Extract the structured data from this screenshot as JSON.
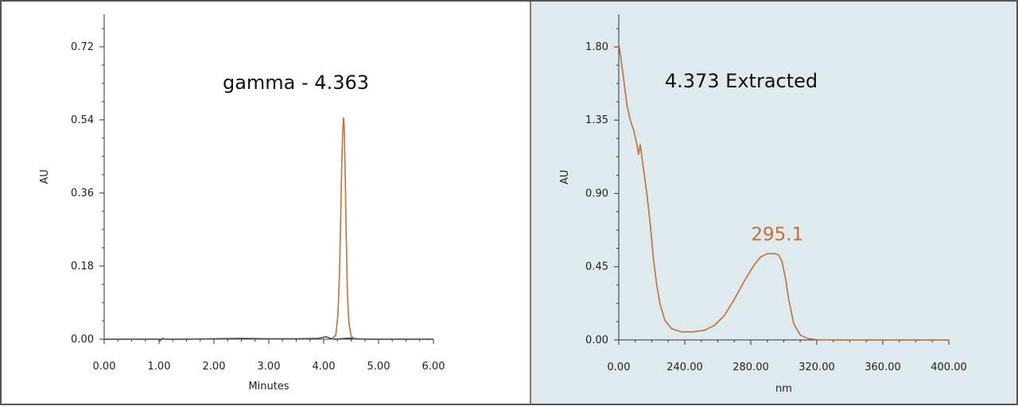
{
  "colors": {
    "accent": "#c0703a",
    "baseline": "#4a4a6a",
    "right_panel_bg": "#deeaee",
    "frame": "#555555",
    "axis": "#333333"
  },
  "chart_data": [
    {
      "type": "line",
      "title": "gamma - 4.363",
      "xlabel": "Minutes",
      "ylabel": "AU",
      "xlim": [
        0,
        6
      ],
      "ylim": [
        -0.01,
        0.8
      ],
      "xticks": [
        "0.00",
        "1.00",
        "2.00",
        "3.00",
        "4.00",
        "5.00",
        "6.00"
      ],
      "yticks": [
        "0.00",
        "0.18",
        "0.36",
        "0.54",
        "0.72"
      ],
      "series": [
        {
          "color": "#4a4a6a",
          "x": [
            0,
            0.5,
            0.98,
            1.02,
            1.06,
            1.12,
            1.5,
            2.0,
            2.5,
            3.0,
            3.5,
            3.9,
            4.05,
            4.12,
            4.2,
            4.5,
            4.6,
            4.8,
            5.0,
            5.5,
            6.0
          ],
          "y": [
            0,
            0,
            0,
            -0.004,
            0.002,
            0,
            0,
            0.001,
            0.002,
            0.001,
            0.001,
            0.002,
            0.006,
            0.002,
            0,
            0.003,
            0.001,
            0,
            0,
            0,
            0
          ]
        },
        {
          "color": "#c0703a",
          "x": [
            4.15,
            4.22,
            4.26,
            4.29,
            4.31,
            4.33,
            4.35,
            4.363,
            4.375,
            4.39,
            4.41,
            4.43,
            4.46,
            4.5,
            4.56
          ],
          "y": [
            0.001,
            0.01,
            0.06,
            0.17,
            0.3,
            0.44,
            0.52,
            0.545,
            0.52,
            0.42,
            0.26,
            0.12,
            0.04,
            0.008,
            0.001
          ]
        }
      ]
    },
    {
      "type": "line",
      "title": "4.373 Extracted",
      "xlabel": "nm",
      "ylabel": "AU",
      "xlim": [
        200,
        400
      ],
      "ylim": [
        -0.02,
        2.0
      ],
      "xticks": [
        "",
        "240.00",
        "280.00",
        "320.00",
        "360.00",
        "400.00"
      ],
      "yticks": [
        "0.00",
        "0.45",
        "0.90",
        "1.35",
        "1.80"
      ],
      "origin_tick": "0.00",
      "annotation": {
        "text": "295.1",
        "x": 295.1,
        "y": 0.53
      },
      "series": [
        {
          "color": "#c0703a",
          "x": [
            200,
            201,
            203,
            205,
            207,
            209,
            211,
            212,
            213,
            215,
            217,
            219,
            221,
            223,
            225,
            228,
            232,
            238,
            245,
            252,
            258,
            264,
            270,
            276,
            282,
            286,
            290,
            293,
            295.1,
            297,
            299,
            301,
            303,
            306,
            310,
            315,
            320,
            330,
            350,
            370,
            400
          ],
          "y": [
            1.82,
            1.75,
            1.6,
            1.44,
            1.35,
            1.29,
            1.2,
            1.14,
            1.2,
            1.05,
            0.9,
            0.72,
            0.5,
            0.34,
            0.22,
            0.12,
            0.07,
            0.05,
            0.05,
            0.06,
            0.09,
            0.15,
            0.25,
            0.36,
            0.46,
            0.51,
            0.53,
            0.53,
            0.53,
            0.52,
            0.48,
            0.38,
            0.25,
            0.1,
            0.03,
            0.008,
            0.002,
            0,
            0,
            0,
            0
          ]
        }
      ]
    }
  ]
}
